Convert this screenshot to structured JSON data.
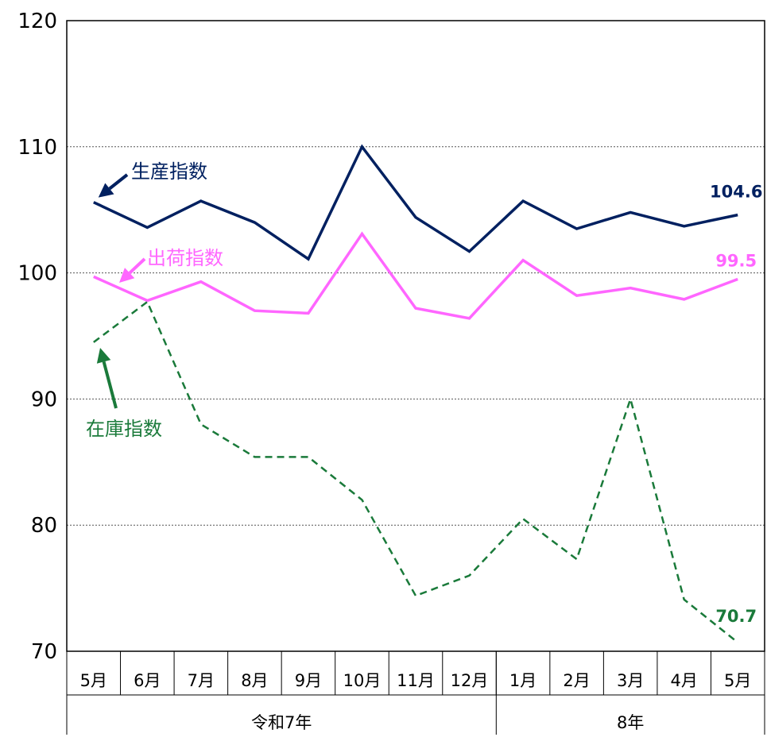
{
  "chart_data": {
    "type": "line",
    "title": "",
    "xlabel": "",
    "ylabel": "",
    "ylim": [
      70,
      120
    ],
    "yticks": [
      70,
      80,
      90,
      100,
      110,
      120
    ],
    "gridlines": [
      80,
      90,
      100,
      110
    ],
    "grid": true,
    "categories": [
      "5月",
      "6月",
      "7月",
      "8月",
      "9月",
      "10月",
      "11月",
      "12月",
      "1月",
      "2月",
      "3月",
      "4月",
      "5月"
    ],
    "year_groups": [
      {
        "label": "令和7年",
        "count": 8
      },
      {
        "label": "8年",
        "count": 5
      }
    ],
    "series": [
      {
        "name": "生産指数",
        "color": "#002060",
        "style": "solid",
        "values": [
          105.6,
          103.6,
          105.7,
          104.0,
          101.1,
          110.0,
          104.4,
          101.7,
          105.7,
          103.5,
          104.8,
          103.7,
          104.6
        ],
        "end_label": "104.6"
      },
      {
        "name": "出荷指数",
        "color": "#FF66FF",
        "style": "solid",
        "values": [
          99.7,
          97.8,
          99.3,
          97.0,
          96.8,
          103.1,
          97.2,
          96.4,
          101.0,
          98.2,
          98.8,
          97.9,
          99.5
        ],
        "end_label": "99.5"
      },
      {
        "name": "在庫指数",
        "color": "#1A7A3A",
        "style": "dashed",
        "values": [
          94.5,
          97.7,
          88.0,
          85.4,
          85.4,
          82.0,
          74.4,
          76.0,
          80.5,
          77.3,
          90.0,
          74.1,
          70.7
        ],
        "end_label": "70.7"
      }
    ]
  }
}
